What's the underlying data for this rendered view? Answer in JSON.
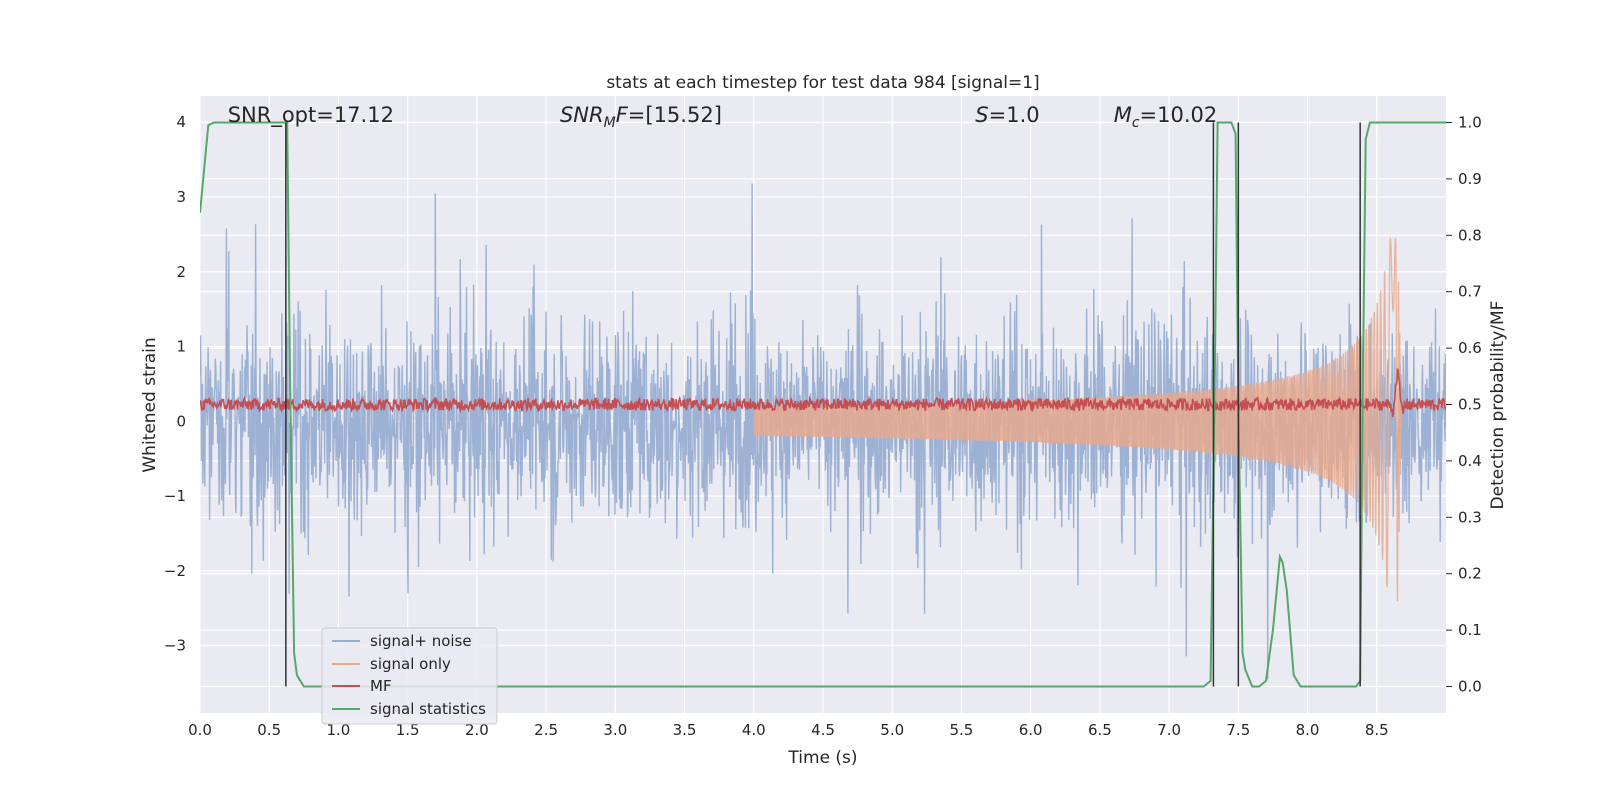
{
  "chart_data": {
    "type": "line",
    "title": "stats at each timestep for test data 984 [signal=1]",
    "xlabel": "Time (s)",
    "ylabel_left": "Whitened strain",
    "ylabel_right": "Detection probability/MF",
    "xlim": [
      0.0,
      9.0
    ],
    "ylim_left": [
      -3.9,
      4.35
    ],
    "ylim_right": [
      -0.047,
      1.047
    ],
    "x_ticks": [
      "0.0",
      "0.5",
      "1.0",
      "1.5",
      "2.0",
      "2.5",
      "3.0",
      "3.5",
      "4.0",
      "4.5",
      "5.0",
      "5.5",
      "6.0",
      "6.5",
      "7.0",
      "7.5",
      "8.0",
      "8.5"
    ],
    "y_left_ticks": [
      "4",
      "3",
      "2",
      "1",
      "0",
      "−1",
      "−2",
      "−3"
    ],
    "y_right_ticks": [
      "1.0",
      "0.9",
      "0.8",
      "0.7",
      "0.6",
      "0.5",
      "0.4",
      "0.3",
      "0.2",
      "0.1",
      "0.0"
    ],
    "grid": true,
    "legend_position": "lower-left",
    "annotations": [
      {
        "id": "snr-opt",
        "text": "SNR_opt=17.12",
        "x": 0.2
      },
      {
        "id": "snr-mf",
        "text": "SNR_MF=[15.52]",
        "x": 2.6
      },
      {
        "id": "s",
        "text": "S=1.0",
        "x": 5.6
      },
      {
        "id": "mc",
        "text": "M_c=10.02",
        "x": 6.6
      }
    ],
    "event_lines_x": [
      0.62,
      7.32,
      7.5,
      8.38
    ],
    "series": [
      {
        "name": "signal+ noise",
        "color": "#98aed1",
        "axis": "left",
        "description": "whitened strain noise, amplitude ~±1.8 with spikes to ±3.5"
      },
      {
        "name": "signal only",
        "color": "#e6a98e",
        "axis": "left",
        "description": "chirp growing from ~0 to peak ~2.4 at t≈8.65 s"
      },
      {
        "name": "MF",
        "color": "#c44e52",
        "axis": "right",
        "description": "matched filter output ~0.5 with peak ~0.55 at t≈8.65 s"
      },
      {
        "name": "signal statistics",
        "color": "#55a868",
        "axis": "right",
        "x": [
          0.0,
          0.06,
          0.1,
          0.15,
          0.2,
          0.3,
          0.4,
          0.5,
          0.55,
          0.6,
          0.63,
          0.65,
          0.68,
          0.7,
          0.75,
          0.8,
          1.0,
          2.0,
          3.0,
          4.0,
          5.0,
          6.0,
          7.0,
          7.25,
          7.3,
          7.33,
          7.35,
          7.4,
          7.45,
          7.48,
          7.5,
          7.53,
          7.55,
          7.6,
          7.65,
          7.7,
          7.75,
          7.8,
          7.82,
          7.85,
          7.9,
          7.95,
          8.0,
          8.1,
          8.2,
          8.3,
          8.35,
          8.38,
          8.4,
          8.42,
          8.45,
          8.5,
          8.6,
          8.7,
          8.8,
          8.9,
          9.0
        ],
        "y": [
          0.84,
          0.995,
          1.0,
          1.0,
          1.0,
          1.0,
          1.0,
          1.0,
          1.0,
          1.0,
          1.0,
          0.55,
          0.06,
          0.02,
          0.0,
          0.0,
          0.0,
          0.0,
          0.0,
          0.0,
          0.0,
          0.0,
          0.0,
          0.0,
          0.01,
          0.55,
          1.0,
          1.0,
          1.0,
          0.98,
          0.5,
          0.06,
          0.03,
          0.0,
          0.0,
          0.01,
          0.1,
          0.23,
          0.22,
          0.17,
          0.02,
          0.0,
          0.0,
          0.0,
          0.0,
          0.0,
          0.0,
          0.01,
          0.55,
          0.97,
          1.0,
          1.0,
          1.0,
          1.0,
          1.0,
          1.0,
          1.0
        ]
      }
    ]
  }
}
